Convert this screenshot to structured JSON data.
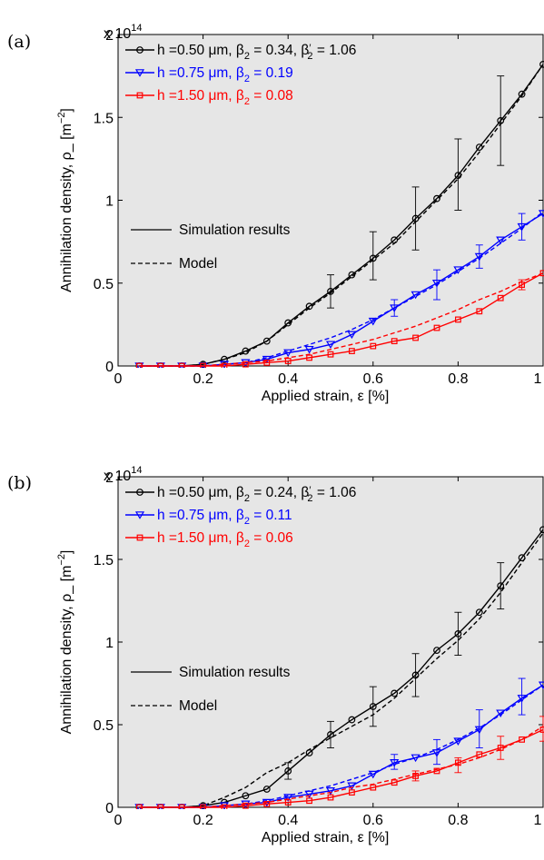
{
  "chart_data": [
    {
      "type": "line",
      "panel_label": "(a)",
      "xlabel": "Applied strain, ε   [%]",
      "ylabel": "Annihilation density, ρ_  [m",
      "ylabel_sup": "−2",
      "ylabel_close": "]",
      "exponent": "x 10",
      "exponent_power": "14",
      "xlim": [
        0,
        1
      ],
      "ylim": [
        0,
        2
      ],
      "xticks": [
        0,
        0.2,
        0.4,
        0.6,
        0.8,
        1
      ],
      "xtick_labels": [
        "0",
        "0.2",
        "0.4",
        "0.6",
        "0.8",
        "1"
      ],
      "yticks": [
        0,
        0.5,
        1,
        1.5,
        2
      ],
      "ytick_labels": [
        "0",
        "0.5",
        "1",
        "1.5",
        "2"
      ],
      "background": "#e6e6e6",
      "legend_style": [
        {
          "line": "solid",
          "text": "Simulation results"
        },
        {
          "line": "dashed",
          "text": "Model"
        }
      ],
      "series": [
        {
          "name": "h =0.50 μm, β₂ = 0.34, β′₂ = 1.06",
          "label_parts": {
            "h": "h =0.50 ",
            "mu": "μ",
            "m": "m, β",
            "sub1": "2",
            "eq1": " = 0.34, β",
            "prime": "′",
            "sub2": "2",
            "eq2": " = 1.06"
          },
          "color": "#000000",
          "marker": "circle",
          "x": [
            0.05,
            0.1,
            0.15,
            0.2,
            0.25,
            0.3,
            0.35,
            0.4,
            0.45,
            0.5,
            0.55,
            0.6,
            0.65,
            0.7,
            0.75,
            0.8,
            0.85,
            0.9,
            0.95,
            1.0
          ],
          "sim": [
            0,
            0,
            0,
            0.01,
            0.04,
            0.09,
            0.15,
            0.26,
            0.36,
            0.45,
            0.55,
            0.65,
            0.76,
            0.89,
            1.01,
            1.15,
            1.32,
            1.48,
            1.64,
            1.82
          ],
          "model": [
            0,
            0,
            0,
            0.01,
            0.04,
            0.08,
            0.15,
            0.25,
            0.35,
            0.44,
            0.54,
            0.64,
            0.74,
            0.87,
            1.0,
            1.13,
            1.29,
            1.46,
            1.63,
            1.82
          ],
          "errorbars": [
            {
              "x": 0.5,
              "low": 0.35,
              "high": 0.55
            },
            {
              "x": 0.6,
              "low": 0.52,
              "high": 0.81
            },
            {
              "x": 0.7,
              "low": 0.7,
              "high": 1.08
            },
            {
              "x": 0.8,
              "low": 0.94,
              "high": 1.37
            },
            {
              "x": 0.9,
              "low": 1.21,
              "high": 1.75
            }
          ]
        },
        {
          "name": "h =0.75 μm, β₂ = 0.19",
          "label_parts": {
            "h": "h =0.75 ",
            "mu": "μ",
            "m": "m, β",
            "sub1": "2",
            "eq1": " = 0.19",
            "prime": "",
            "sub2": "",
            "eq2": ""
          },
          "color": "#0000ff",
          "marker": "triangle-down",
          "x": [
            0.05,
            0.1,
            0.15,
            0.2,
            0.25,
            0.3,
            0.35,
            0.4,
            0.45,
            0.5,
            0.55,
            0.6,
            0.65,
            0.7,
            0.75,
            0.8,
            0.85,
            0.9,
            0.95,
            1.0
          ],
          "sim": [
            0,
            0,
            0,
            0,
            0.01,
            0.02,
            0.04,
            0.08,
            0.1,
            0.13,
            0.19,
            0.27,
            0.35,
            0.43,
            0.5,
            0.58,
            0.66,
            0.76,
            0.84,
            0.92
          ],
          "model": [
            0,
            0,
            0,
            0,
            0.01,
            0.02,
            0.05,
            0.09,
            0.13,
            0.17,
            0.22,
            0.28,
            0.35,
            0.42,
            0.49,
            0.57,
            0.65,
            0.74,
            0.83,
            0.93
          ],
          "errorbars": [
            {
              "x": 0.65,
              "low": 0.3,
              "high": 0.4
            },
            {
              "x": 0.75,
              "low": 0.4,
              "high": 0.58
            },
            {
              "x": 0.85,
              "low": 0.59,
              "high": 0.73
            },
            {
              "x": 0.95,
              "low": 0.76,
              "high": 0.92
            }
          ]
        },
        {
          "name": "h =1.50 μm, β₂ = 0.08",
          "label_parts": {
            "h": "h =1.50 ",
            "mu": "μ",
            "m": "m, β",
            "sub1": "2",
            "eq1": " = 0.08",
            "prime": "",
            "sub2": "",
            "eq2": ""
          },
          "color": "#ff0000",
          "marker": "square",
          "x": [
            0.05,
            0.1,
            0.15,
            0.2,
            0.25,
            0.3,
            0.35,
            0.4,
            0.45,
            0.5,
            0.55,
            0.6,
            0.65,
            0.7,
            0.75,
            0.8,
            0.85,
            0.9,
            0.95,
            1.0
          ],
          "sim": [
            0,
            0,
            0,
            0,
            0,
            0.01,
            0.02,
            0.03,
            0.05,
            0.07,
            0.09,
            0.12,
            0.15,
            0.17,
            0.23,
            0.28,
            0.33,
            0.41,
            0.49,
            0.56
          ],
          "model": [
            0,
            0,
            0,
            0,
            0.01,
            0.02,
            0.03,
            0.05,
            0.07,
            0.1,
            0.13,
            0.16,
            0.2,
            0.24,
            0.29,
            0.34,
            0.4,
            0.45,
            0.51,
            0.56
          ],
          "errorbars": [
            {
              "x": 0.95,
              "low": 0.46,
              "high": 0.52
            }
          ]
        }
      ]
    },
    {
      "type": "line",
      "panel_label": "(b)",
      "xlabel": "Applied strain, ε   [%]",
      "ylabel": "Annihilation density, ρ_  [m",
      "ylabel_sup": "−2",
      "ylabel_close": "]",
      "exponent": "x 10",
      "exponent_power": "14",
      "xlim": [
        0,
        1
      ],
      "ylim": [
        0,
        2
      ],
      "xticks": [
        0,
        0.2,
        0.4,
        0.6,
        0.8,
        1
      ],
      "xtick_labels": [
        "0",
        "0.2",
        "0.4",
        "0.6",
        "0.8",
        "1"
      ],
      "yticks": [
        0,
        0.5,
        1,
        1.5,
        2
      ],
      "ytick_labels": [
        "0",
        "0.5",
        "1",
        "1.5",
        "2"
      ],
      "background": "#e6e6e6",
      "legend_style": [
        {
          "line": "solid",
          "text": "Simulation results"
        },
        {
          "line": "dashed",
          "text": "Model"
        }
      ],
      "series": [
        {
          "name": "h =0.50 μm, β₂ = 0.24, β′₂ = 1.06",
          "label_parts": {
            "h": "h =0.50 ",
            "mu": "μ",
            "m": "m, β",
            "sub1": "2",
            "eq1": " = 0.24, β",
            "prime": "′",
            "sub2": "2",
            "eq2": " = 1.06"
          },
          "color": "#000000",
          "marker": "circle",
          "x": [
            0.05,
            0.1,
            0.15,
            0.2,
            0.25,
            0.3,
            0.35,
            0.4,
            0.45,
            0.5,
            0.55,
            0.6,
            0.65,
            0.7,
            0.75,
            0.8,
            0.85,
            0.9,
            0.95,
            1.0
          ],
          "sim": [
            0,
            0,
            0,
            0.01,
            0.03,
            0.07,
            0.11,
            0.22,
            0.33,
            0.44,
            0.53,
            0.61,
            0.69,
            0.8,
            0.95,
            1.05,
            1.18,
            1.34,
            1.51,
            1.68
          ],
          "model": [
            0,
            0,
            0,
            0.01,
            0.06,
            0.12,
            0.21,
            0.27,
            0.35,
            0.42,
            0.49,
            0.56,
            0.66,
            0.78,
            0.9,
            1.01,
            1.14,
            1.3,
            1.48,
            1.66
          ],
          "errorbars": [
            {
              "x": 0.4,
              "low": 0.17,
              "high": 0.27
            },
            {
              "x": 0.5,
              "low": 0.36,
              "high": 0.52
            },
            {
              "x": 0.6,
              "low": 0.49,
              "high": 0.73
            },
            {
              "x": 0.7,
              "low": 0.67,
              "high": 0.93
            },
            {
              "x": 0.8,
              "low": 0.92,
              "high": 1.18
            },
            {
              "x": 0.9,
              "low": 1.2,
              "high": 1.48
            }
          ]
        },
        {
          "name": "h =0.75 μm, β₂ = 0.11",
          "label_parts": {
            "h": "h =0.75 ",
            "mu": "μ",
            "m": "m, β",
            "sub1": "2",
            "eq1": " = 0.11",
            "prime": "",
            "sub2": "",
            "eq2": ""
          },
          "color": "#0000ff",
          "marker": "triangle-down",
          "x": [
            0.05,
            0.1,
            0.15,
            0.2,
            0.25,
            0.3,
            0.35,
            0.4,
            0.45,
            0.5,
            0.55,
            0.6,
            0.65,
            0.7,
            0.75,
            0.8,
            0.85,
            0.9,
            0.95,
            1.0
          ],
          "sim": [
            0,
            0,
            0,
            0,
            0.01,
            0.02,
            0.03,
            0.06,
            0.08,
            0.1,
            0.13,
            0.2,
            0.27,
            0.3,
            0.33,
            0.4,
            0.47,
            0.57,
            0.66,
            0.74
          ],
          "model": [
            0,
            0,
            0,
            0,
            0.01,
            0.02,
            0.04,
            0.07,
            0.1,
            0.13,
            0.17,
            0.21,
            0.26,
            0.3,
            0.35,
            0.41,
            0.48,
            0.56,
            0.65,
            0.74
          ],
          "errorbars": [
            {
              "x": 0.65,
              "low": 0.23,
              "high": 0.32
            },
            {
              "x": 0.75,
              "low": 0.26,
              "high": 0.41
            },
            {
              "x": 0.85,
              "low": 0.36,
              "high": 0.59
            },
            {
              "x": 0.95,
              "low": 0.56,
              "high": 0.78
            }
          ]
        },
        {
          "name": "h =1.50 μm, β₂ = 0.06",
          "label_parts": {
            "h": "h =1.50 ",
            "mu": "μ",
            "m": "m, β",
            "sub1": "2",
            "eq1": " = 0.06",
            "prime": "",
            "sub2": "",
            "eq2": ""
          },
          "color": "#ff0000",
          "marker": "square",
          "x": [
            0.05,
            0.1,
            0.15,
            0.2,
            0.25,
            0.3,
            0.35,
            0.4,
            0.45,
            0.5,
            0.55,
            0.6,
            0.65,
            0.7,
            0.75,
            0.8,
            0.85,
            0.9,
            0.95,
            1.0
          ],
          "sim": [
            0,
            0,
            0,
            0,
            0,
            0.01,
            0.02,
            0.03,
            0.04,
            0.06,
            0.09,
            0.12,
            0.15,
            0.19,
            0.22,
            0.27,
            0.32,
            0.36,
            0.41,
            0.47
          ],
          "model": [
            0,
            0,
            0,
            0,
            0.01,
            0.02,
            0.03,
            0.05,
            0.07,
            0.09,
            0.12,
            0.14,
            0.17,
            0.2,
            0.23,
            0.26,
            0.3,
            0.35,
            0.41,
            0.49
          ],
          "errorbars": [
            {
              "x": 0.7,
              "low": 0.16,
              "high": 0.22
            },
            {
              "x": 0.8,
              "low": 0.21,
              "high": 0.3
            },
            {
              "x": 0.9,
              "low": 0.29,
              "high": 0.43
            },
            {
              "x": 1.0,
              "low": 0.4,
              "high": 0.55
            }
          ]
        }
      ]
    }
  ]
}
